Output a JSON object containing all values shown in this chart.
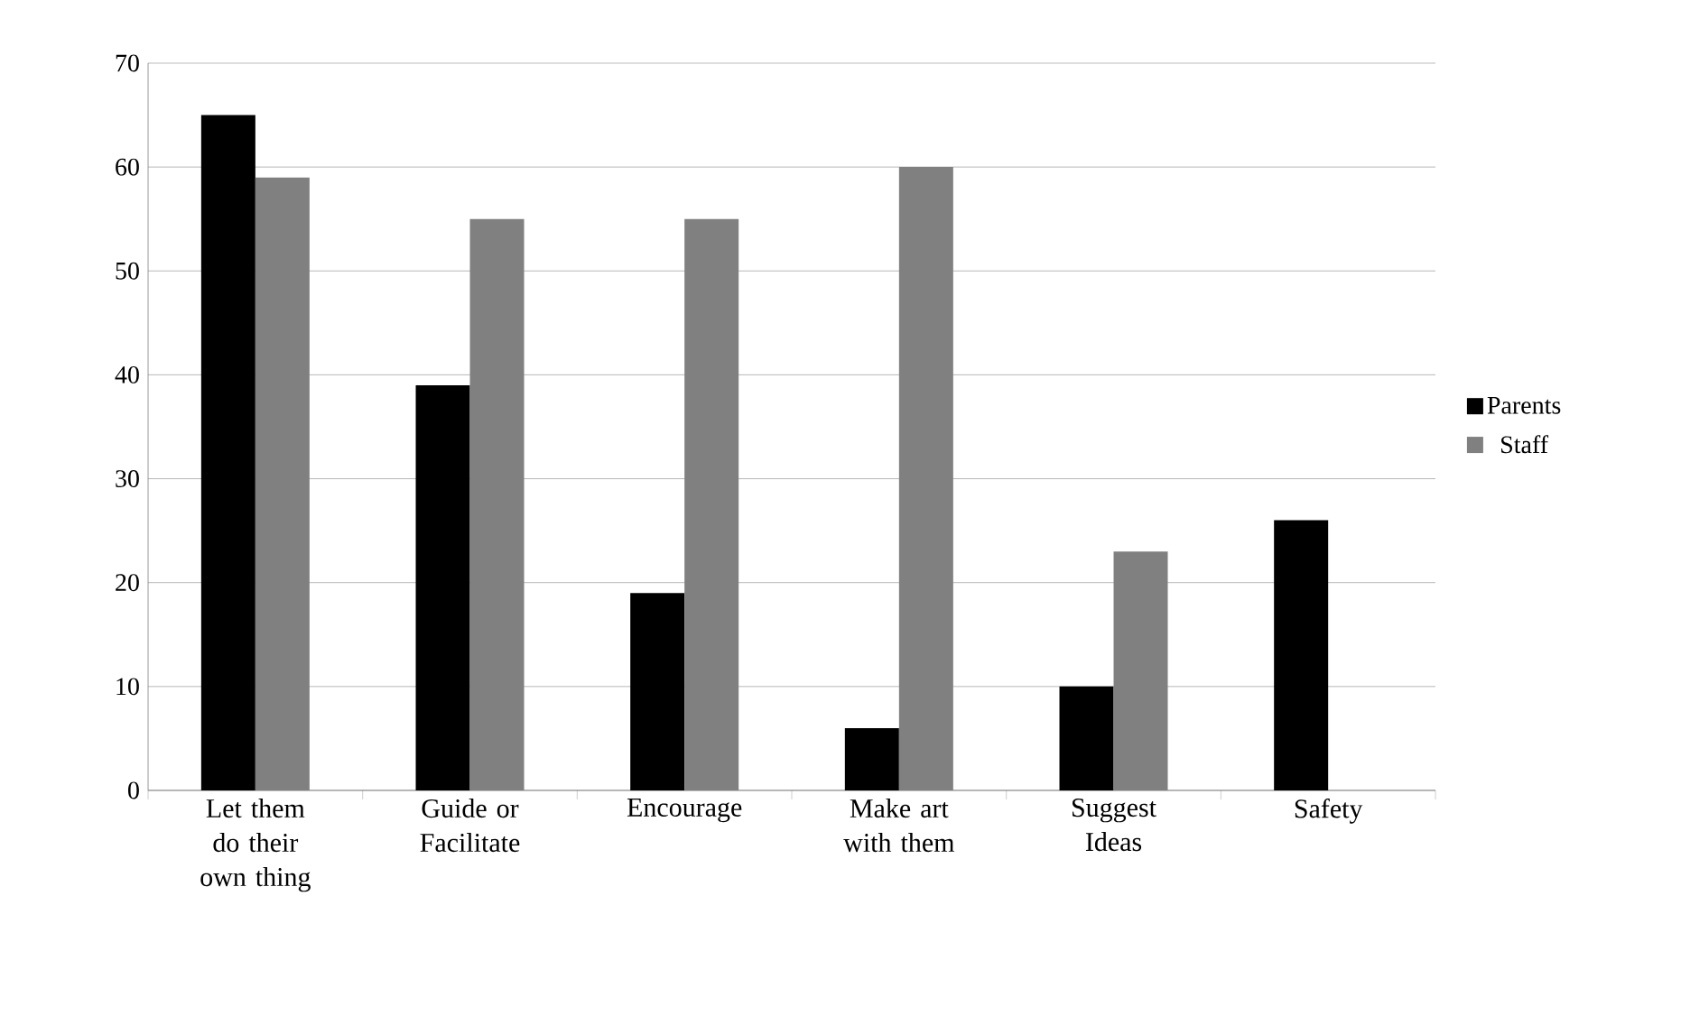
{
  "chart_data": {
    "type": "bar",
    "categories": [
      "Let them do their own thing",
      "Guide or Facilitate",
      "Encourage",
      "Make art with them",
      "Suggest Ideas",
      "Safety"
    ],
    "series": [
      {
        "name": "Parents",
        "color": "#000000",
        "values": [
          65,
          39,
          19,
          6,
          10,
          26
        ]
      },
      {
        "name": "Staff",
        "color": "#808080",
        "values": [
          59,
          55,
          55,
          60,
          23,
          0
        ]
      }
    ],
    "ylim": [
      0,
      70
    ],
    "yticks": [
      0,
      10,
      20,
      30,
      40,
      50,
      60,
      70
    ],
    "grid": "y",
    "legend": "right"
  }
}
